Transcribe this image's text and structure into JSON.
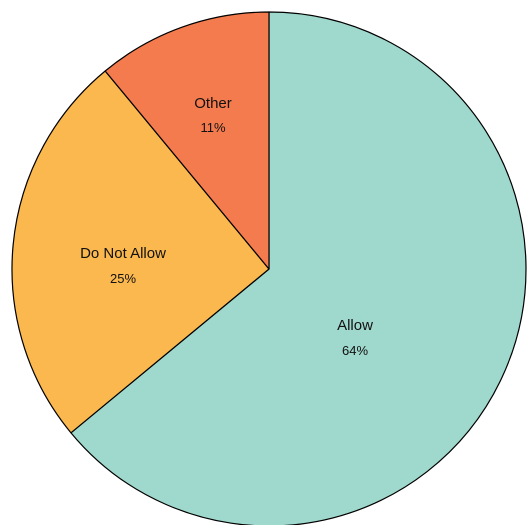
{
  "chart_data": {
    "type": "pie",
    "start": "top",
    "direction": "clockwise",
    "slices": [
      {
        "label": "Allow",
        "percent_label": "64%",
        "value": 64,
        "color": "#9fd8cc"
      },
      {
        "label": "Do Not Allow",
        "percent_label": "25%",
        "value": 25,
        "color": "#fbb84e"
      },
      {
        "label": "Other",
        "percent_label": "11%",
        "value": 11,
        "color": "#f47b4e"
      }
    ]
  }
}
